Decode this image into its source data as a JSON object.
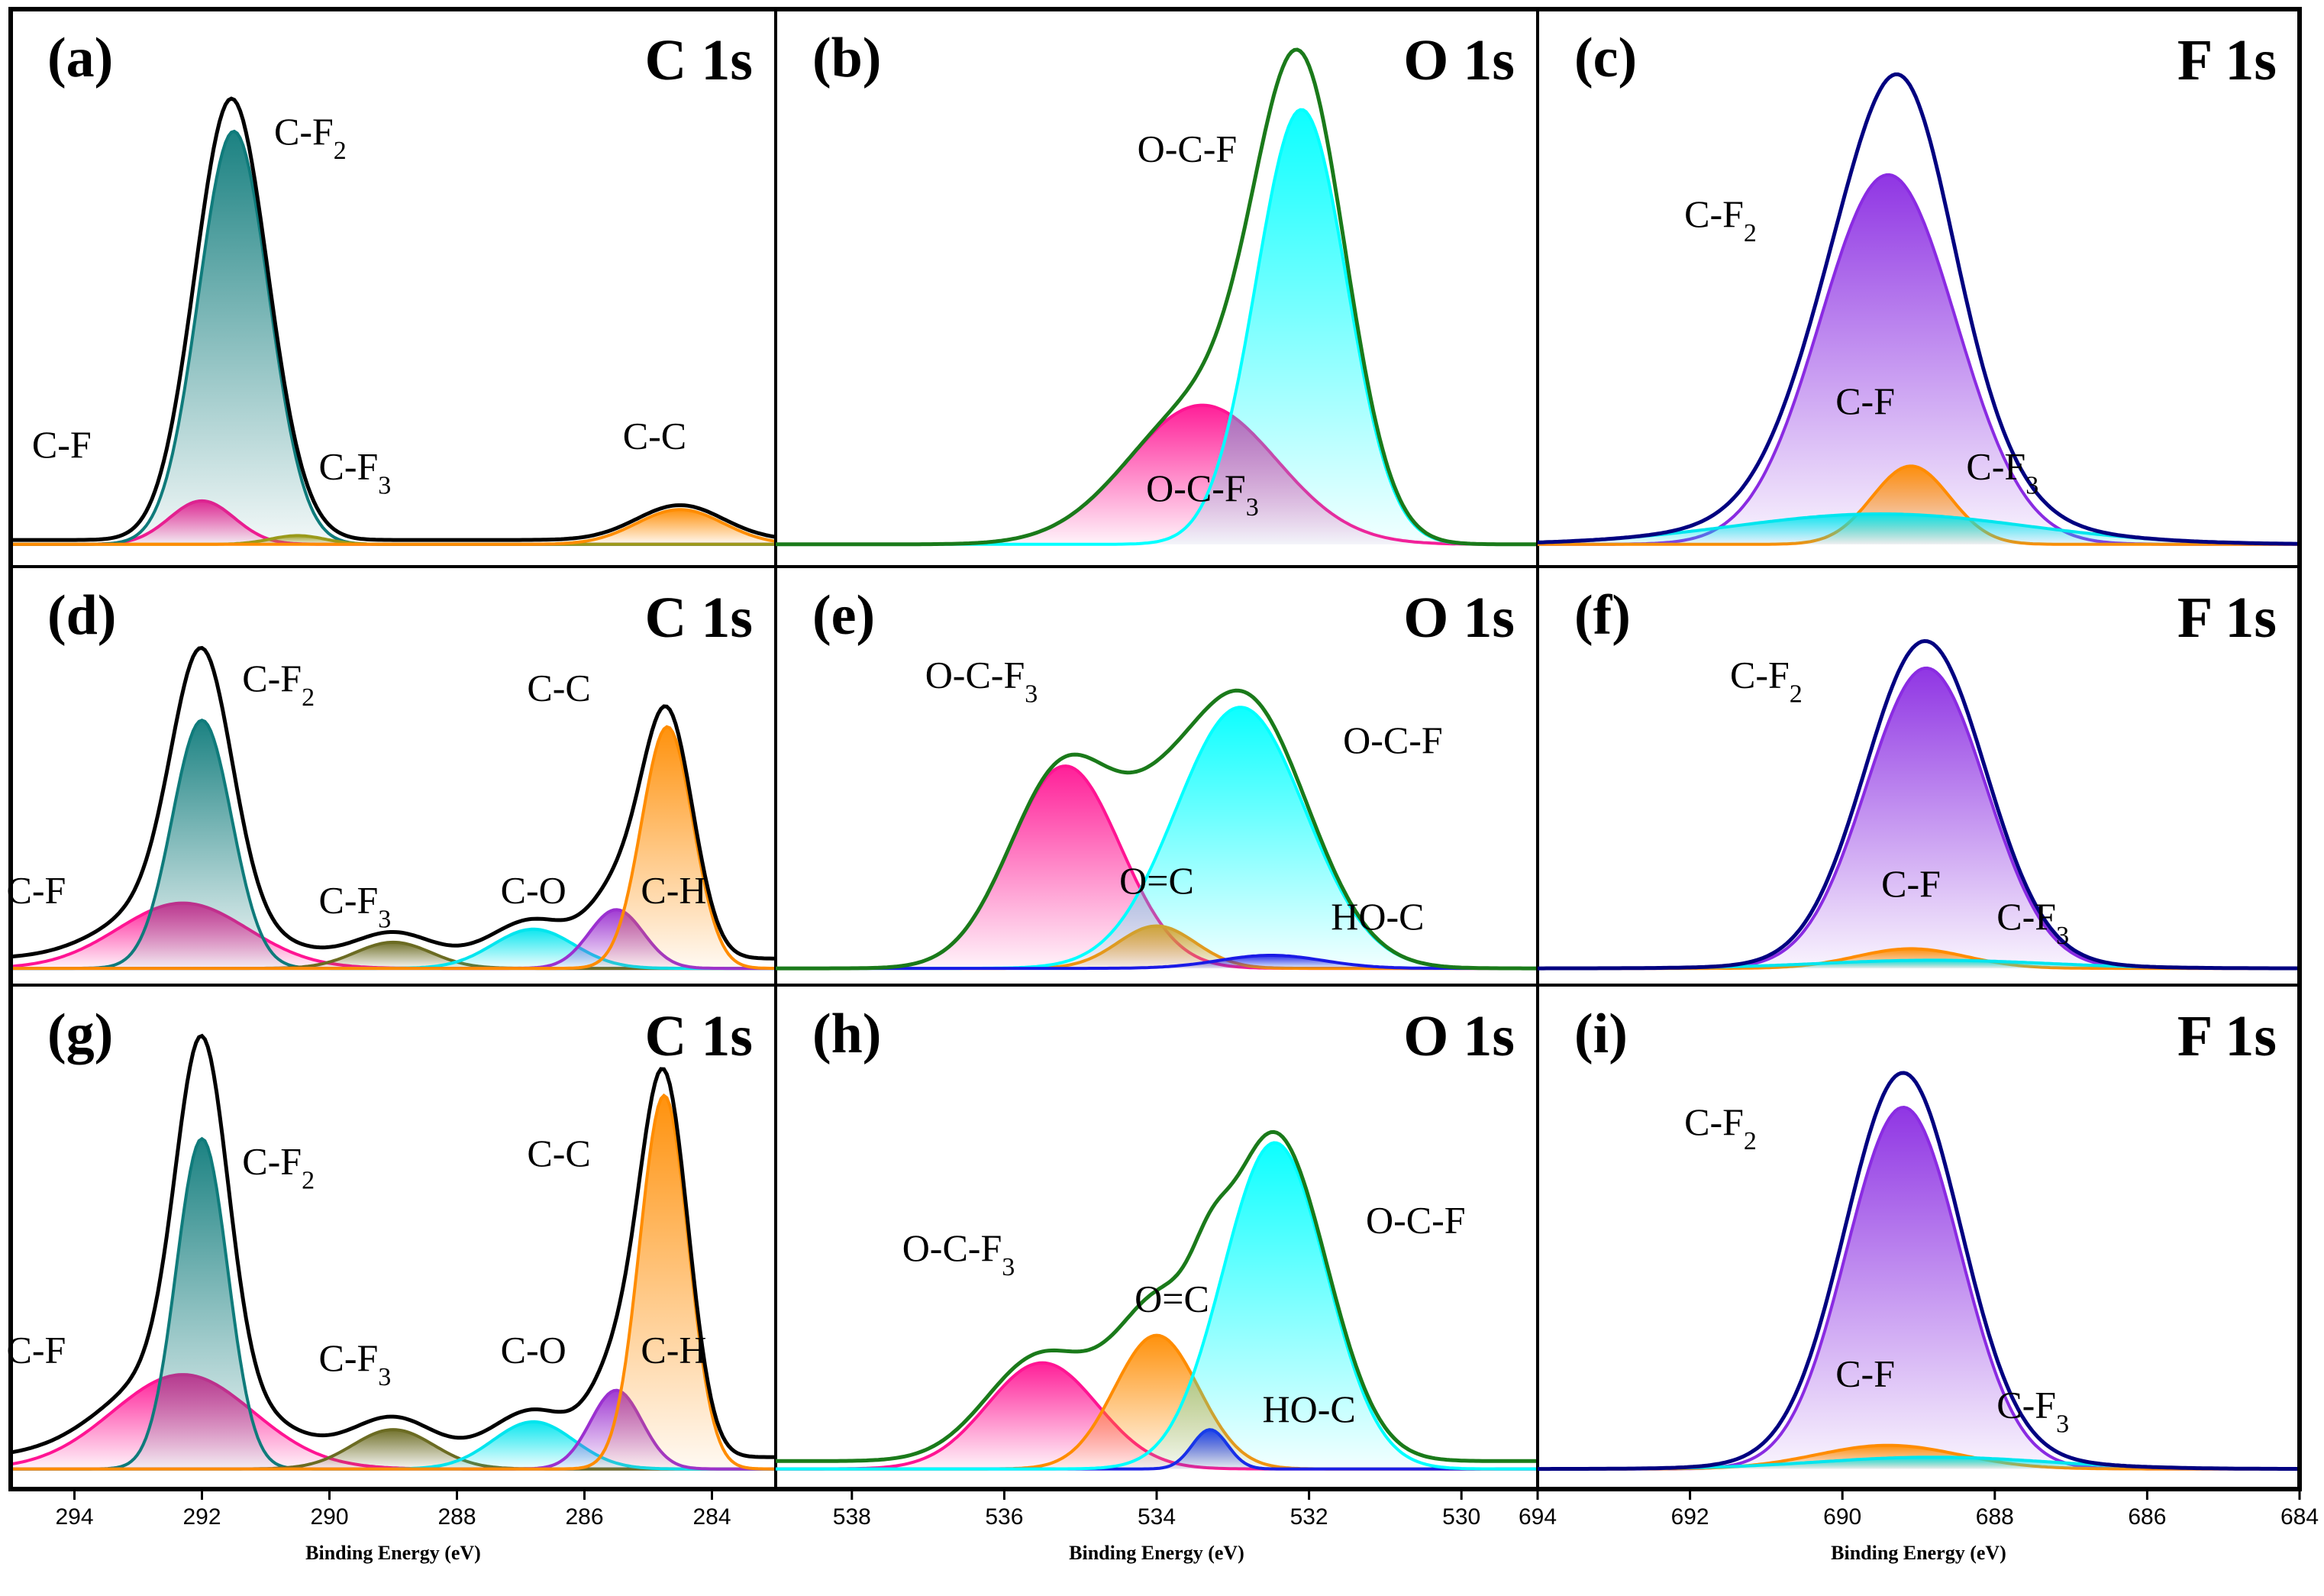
{
  "chart_data": [
    {
      "id": "a",
      "type": "area",
      "panel_label": "(a)",
      "title": "C 1s",
      "xlabel": "Binding Energy (eV)",
      "xlim": [
        295,
        283
      ],
      "x_reversed": true,
      "xticks": [
        "294",
        "292",
        "290",
        "288",
        "286",
        "284"
      ],
      "xtick_values": [
        294,
        292,
        290,
        288,
        286,
        284
      ],
      "envelope": {
        "color": "#000000",
        "baseline": 0.01
      },
      "components": [
        {
          "label": "C-F",
          "center": 292.0,
          "height": 0.1,
          "width": 1.2,
          "color": "#ff1493",
          "label_x": 294.2,
          "label_y": 0.2
        },
        {
          "label": "C-F2",
          "center": 291.5,
          "height": 0.95,
          "width": 1.3,
          "color": "#0f7b7b",
          "label_x": 290.3,
          "label_y": 0.92
        },
        {
          "label": "C-F3",
          "center": 290.5,
          "height": 0.02,
          "width": 1.0,
          "color": "#9a9a1a",
          "label_x": 289.6,
          "label_y": 0.15
        },
        {
          "label": "C-C",
          "center": 284.5,
          "height": 0.08,
          "width": 1.6,
          "color": "#ff8c00",
          "label_x": 284.9,
          "label_y": 0.22
        }
      ]
    },
    {
      "id": "b",
      "type": "area",
      "panel_label": "(b)",
      "title": "O 1s",
      "xlabel": "Binding Energy (eV)",
      "xlim": [
        539,
        529
      ],
      "x_reversed": true,
      "xticks": [
        "538",
        "536",
        "534",
        "532",
        "530"
      ],
      "xtick_values": [
        538,
        536,
        534,
        532,
        530
      ],
      "envelope": {
        "color": "#1a7a1a",
        "baseline": 0.0
      },
      "components": [
        {
          "label": "O-C-F3",
          "center": 533.4,
          "height": 0.32,
          "width": 2.3,
          "color": "#ff1493",
          "label_x": 533.4,
          "label_y": 0.1
        },
        {
          "label": "O-C-F",
          "center": 532.1,
          "height": 1.0,
          "width": 1.4,
          "color": "#00ffff",
          "label_x": 533.6,
          "label_y": 0.88
        }
      ]
    },
    {
      "id": "c",
      "type": "area",
      "panel_label": "(c)",
      "title": "F 1s",
      "xlabel": "Binding Energy (eV)",
      "xlim": [
        694,
        684
      ],
      "x_reversed": true,
      "xticks": [
        "694",
        "692",
        "690",
        "688",
        "686",
        "684"
      ],
      "xtick_values": [
        694,
        692,
        690,
        688,
        686,
        684
      ],
      "envelope": {
        "color": "#000080",
        "baseline": 0.0
      },
      "components": [
        {
          "label": "C-F2",
          "center": 689.4,
          "height": 0.85,
          "width": 2.1,
          "color": "#8a2be2",
          "label_x": 691.6,
          "label_y": 0.73
        },
        {
          "label": "C-F",
          "center": 689.1,
          "height": 0.18,
          "width": 1.2,
          "color": "#ff8c00",
          "label_x": 689.7,
          "label_y": 0.3
        },
        {
          "label": "C-F3",
          "center": 689.5,
          "height": 0.07,
          "width": 4.5,
          "color": "#00e5ee",
          "label_x": 687.9,
          "label_y": 0.15
        }
      ]
    },
    {
      "id": "d",
      "type": "area",
      "panel_label": "(d)",
      "title": "C 1s",
      "xlabel": "Binding Energy (eV)",
      "xlim": [
        295,
        283
      ],
      "x_reversed": true,
      "xticks": [
        "294",
        "292",
        "290",
        "288",
        "286",
        "284"
      ],
      "xtick_values": [
        294,
        292,
        290,
        288,
        286,
        284
      ],
      "envelope": {
        "color": "#000000",
        "baseline": 0.03
      },
      "components": [
        {
          "label": "C-F",
          "center": 292.3,
          "height": 0.2,
          "width": 2.4,
          "color": "#ff1493",
          "label_x": 294.6,
          "label_y": 0.2
        },
        {
          "label": "C-F2",
          "center": 292.0,
          "height": 0.76,
          "width": 1.1,
          "color": "#0f7b7b",
          "label_x": 290.8,
          "label_y": 0.85
        },
        {
          "label": "C-F3",
          "center": 289.0,
          "height": 0.08,
          "width": 1.4,
          "color": "#6b6b22",
          "label_x": 289.6,
          "label_y": 0.17
        },
        {
          "label": "C-O",
          "center": 286.8,
          "height": 0.12,
          "width": 1.5,
          "color": "#00e5ee",
          "label_x": 286.8,
          "label_y": 0.2
        },
        {
          "label": "C-H",
          "center": 285.5,
          "height": 0.18,
          "width": 1.0,
          "color": "#9b30d0",
          "label_x": 284.6,
          "label_y": 0.2
        },
        {
          "label": "C-C",
          "center": 284.7,
          "height": 0.74,
          "width": 0.95,
          "color": "#ff8c00",
          "label_x": 286.4,
          "label_y": 0.82
        }
      ]
    },
    {
      "id": "e",
      "type": "area",
      "panel_label": "(e)",
      "title": "O 1s",
      "xlabel": "Binding Energy (eV)",
      "xlim": [
        539,
        529
      ],
      "x_reversed": true,
      "xticks": [
        "538",
        "536",
        "534",
        "532",
        "530"
      ],
      "xtick_values": [
        538,
        536,
        534,
        532,
        530
      ],
      "envelope": {
        "color": "#1a7a1a",
        "baseline": 0.0
      },
      "components": [
        {
          "label": "O-C-F3",
          "center": 535.2,
          "height": 0.62,
          "width": 1.7,
          "color": "#ff1493",
          "label_x": 536.3,
          "label_y": 0.86
        },
        {
          "label": "O=C",
          "center": 534.0,
          "height": 0.13,
          "width": 1.2,
          "color": "#ff8c00",
          "label_x": 534.0,
          "label_y": 0.23
        },
        {
          "label": "O-C-F",
          "center": 532.9,
          "height": 0.8,
          "width": 2.0,
          "color": "#00ffff",
          "label_x": 530.9,
          "label_y": 0.66
        },
        {
          "label": "HO-C",
          "center": 532.5,
          "height": 0.04,
          "width": 1.6,
          "color": "#1a1ae6",
          "label_x": 531.1,
          "label_y": 0.12
        }
      ]
    },
    {
      "id": "f",
      "type": "area",
      "panel_label": "(f)",
      "title": "F 1s",
      "xlabel": "Binding Energy (eV)",
      "xlim": [
        694,
        684
      ],
      "x_reversed": true,
      "xticks": [
        "694",
        "692",
        "690",
        "688",
        "686",
        "684"
      ],
      "xtick_values": [
        694,
        692,
        690,
        688,
        686,
        684
      ],
      "envelope": {
        "color": "#000080",
        "baseline": 0.0
      },
      "components": [
        {
          "label": "C-F2",
          "center": 688.9,
          "height": 0.92,
          "width": 1.85,
          "color": "#8a2be2",
          "label_x": 691.0,
          "label_y": 0.86
        },
        {
          "label": "C-F",
          "center": 689.1,
          "height": 0.06,
          "width": 1.7,
          "color": "#ff8c00",
          "label_x": 689.1,
          "label_y": 0.22
        },
        {
          "label": "C-F3",
          "center": 688.8,
          "height": 0.025,
          "width": 3.5,
          "color": "#00e5ee",
          "label_x": 687.5,
          "label_y": 0.12
        }
      ]
    },
    {
      "id": "g",
      "type": "area",
      "panel_label": "(g)",
      "title": "C 1s",
      "xlabel": "Binding Energy (eV)",
      "xlim": [
        295,
        283
      ],
      "x_reversed": true,
      "xticks": [
        "294",
        "292",
        "290",
        "288",
        "286",
        "284"
      ],
      "xtick_values": [
        294,
        292,
        290,
        288,
        286,
        284
      ],
      "envelope": {
        "color": "#000000",
        "baseline": 0.03
      },
      "components": [
        {
          "label": "C-F",
          "center": 292.3,
          "height": 0.24,
          "width": 2.6,
          "color": "#ff1493",
          "label_x": 294.6,
          "label_y": 0.27
        },
        {
          "label": "C-F2",
          "center": 292.0,
          "height": 0.84,
          "width": 0.95,
          "color": "#0f7b7b",
          "label_x": 290.8,
          "label_y": 0.75
        },
        {
          "label": "C-F3",
          "center": 289.0,
          "height": 0.1,
          "width": 1.5,
          "color": "#6b6b22",
          "label_x": 289.6,
          "label_y": 0.25
        },
        {
          "label": "C-O",
          "center": 286.8,
          "height": 0.12,
          "width": 1.5,
          "color": "#00e5ee",
          "label_x": 286.8,
          "label_y": 0.27
        },
        {
          "label": "C-H",
          "center": 285.5,
          "height": 0.2,
          "width": 0.95,
          "color": "#9b30d0",
          "label_x": 284.6,
          "label_y": 0.27
        },
        {
          "label": "C-C",
          "center": 284.75,
          "height": 0.95,
          "width": 0.9,
          "color": "#ff8c00",
          "label_x": 286.4,
          "label_y": 0.77
        }
      ]
    },
    {
      "id": "h",
      "type": "area",
      "panel_label": "(h)",
      "title": "O 1s",
      "xlabel": "Binding Energy (eV)",
      "xlim": [
        539,
        529
      ],
      "x_reversed": true,
      "xticks": [
        "538",
        "536",
        "534",
        "532",
        "530"
      ],
      "xtick_values": [
        538,
        536,
        534,
        532,
        530
      ],
      "envelope": {
        "color": "#1a7a1a",
        "baseline": 0.02
      },
      "components": [
        {
          "label": "O-C-F3",
          "center": 535.5,
          "height": 0.27,
          "width": 1.7,
          "color": "#ff1493",
          "label_x": 536.6,
          "label_y": 0.53
        },
        {
          "label": "O=C",
          "center": 534.0,
          "height": 0.34,
          "width": 1.3,
          "color": "#ff8c00",
          "label_x": 533.8,
          "label_y": 0.4
        },
        {
          "label": "HO-C",
          "center": 533.3,
          "height": 0.1,
          "width": 0.55,
          "color": "#1a1ae6",
          "label_x": 532.0,
          "label_y": 0.12
        },
        {
          "label": "O-C-F",
          "center": 532.45,
          "height": 0.83,
          "width": 1.6,
          "color": "#00ffff",
          "label_x": 530.6,
          "label_y": 0.6
        }
      ]
    },
    {
      "id": "i",
      "type": "area",
      "panel_label": "(i)",
      "title": "F 1s",
      "xlabel": "Binding Energy (eV)",
      "xlim": [
        694,
        684
      ],
      "x_reversed": true,
      "xticks": [
        "694",
        "692",
        "690",
        "688",
        "686",
        "684"
      ],
      "xtick_values": [
        694,
        692,
        690,
        688,
        686,
        684
      ],
      "envelope": {
        "color": "#000080",
        "baseline": 0.0
      },
      "components": [
        {
          "label": "C-F2",
          "center": 689.2,
          "height": 0.92,
          "width": 1.75,
          "color": "#8a2be2",
          "label_x": 691.6,
          "label_y": 0.85
        },
        {
          "label": "C-F",
          "center": 689.4,
          "height": 0.06,
          "width": 2.2,
          "color": "#ff8c00",
          "label_x": 689.7,
          "label_y": 0.21
        },
        {
          "label": "C-F3",
          "center": 688.8,
          "height": 0.03,
          "width": 3.5,
          "color": "#00e5ee",
          "label_x": 687.5,
          "label_y": 0.13
        }
      ]
    }
  ]
}
